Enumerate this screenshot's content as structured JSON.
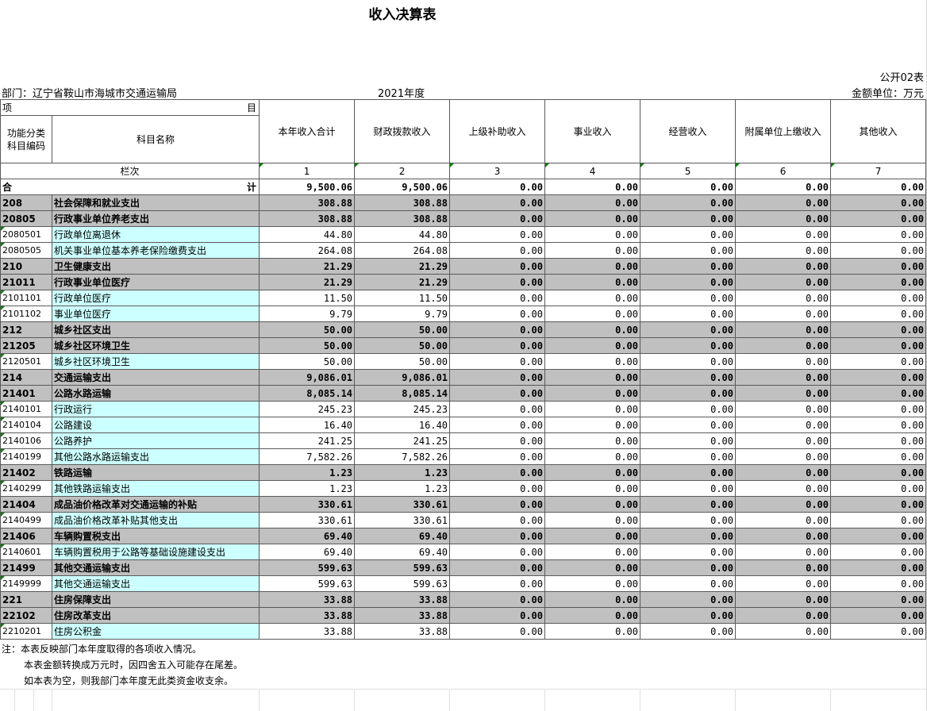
{
  "title": "收入决算表",
  "form_no": "公开02表",
  "department": "部门：辽宁省鞍山市海城市交通运输局",
  "year": "2021年度",
  "unit": "金额单位：万元",
  "header": {
    "xiang": "项",
    "mu": "目",
    "func_code": "功能分类\n科目编码",
    "subject_name": "科目名称",
    "columns": [
      "本年收入合计",
      "财政拨款收入",
      "上级补助收入",
      "事业收入",
      "经营收入",
      "附属单位上缴收入",
      "其他收入"
    ],
    "lanci": "栏次",
    "col_nums": [
      "1",
      "2",
      "3",
      "4",
      "5",
      "6",
      "7"
    ],
    "total_left": "合",
    "total_right": "计",
    "total_values": [
      "9,500.06",
      "9,500.06",
      "0.00",
      "0.00",
      "0.00",
      "0.00",
      "0.00"
    ]
  },
  "rows": [
    {
      "code": "208",
      "name": "社会保障和就业支出",
      "level": "gray",
      "v": [
        "308.88",
        "308.88",
        "0.00",
        "0.00",
        "0.00",
        "0.00",
        "0.00"
      ]
    },
    {
      "code": "20805",
      "name": "行政事业单位养老支出",
      "level": "gray",
      "v": [
        "308.88",
        "308.88",
        "0.00",
        "0.00",
        "0.00",
        "0.00",
        "0.00"
      ]
    },
    {
      "code": "2080501",
      "name": "行政单位离退休",
      "level": "detail",
      "v": [
        "44.80",
        "44.80",
        "0.00",
        "0.00",
        "0.00",
        "0.00",
        "0.00"
      ]
    },
    {
      "code": "2080505",
      "name": "机关事业单位基本养老保险缴费支出",
      "level": "detail",
      "v": [
        "264.08",
        "264.08",
        "0.00",
        "0.00",
        "0.00",
        "0.00",
        "0.00"
      ]
    },
    {
      "code": "210",
      "name": "卫生健康支出",
      "level": "gray",
      "v": [
        "21.29",
        "21.29",
        "0.00",
        "0.00",
        "0.00",
        "0.00",
        "0.00"
      ]
    },
    {
      "code": "21011",
      "name": "行政事业单位医疗",
      "level": "gray",
      "v": [
        "21.29",
        "21.29",
        "0.00",
        "0.00",
        "0.00",
        "0.00",
        "0.00"
      ]
    },
    {
      "code": "2101101",
      "name": "行政单位医疗",
      "level": "detail",
      "v": [
        "11.50",
        "11.50",
        "0.00",
        "0.00",
        "0.00",
        "0.00",
        "0.00"
      ]
    },
    {
      "code": "2101102",
      "name": "事业单位医疗",
      "level": "detail",
      "v": [
        "9.79",
        "9.79",
        "0.00",
        "0.00",
        "0.00",
        "0.00",
        "0.00"
      ]
    },
    {
      "code": "212",
      "name": "城乡社区支出",
      "level": "gray",
      "v": [
        "50.00",
        "50.00",
        "0.00",
        "0.00",
        "0.00",
        "0.00",
        "0.00"
      ]
    },
    {
      "code": "21205",
      "name": "城乡社区环境卫生",
      "level": "gray",
      "v": [
        "50.00",
        "50.00",
        "0.00",
        "0.00",
        "0.00",
        "0.00",
        "0.00"
      ]
    },
    {
      "code": "2120501",
      "name": "城乡社区环境卫生",
      "level": "detail",
      "v": [
        "50.00",
        "50.00",
        "0.00",
        "0.00",
        "0.00",
        "0.00",
        "0.00"
      ]
    },
    {
      "code": "214",
      "name": "交通运输支出",
      "level": "gray",
      "v": [
        "9,086.01",
        "9,086.01",
        "0.00",
        "0.00",
        "0.00",
        "0.00",
        "0.00"
      ]
    },
    {
      "code": "21401",
      "name": "公路水路运输",
      "level": "gray",
      "v": [
        "8,085.14",
        "8,085.14",
        "0.00",
        "0.00",
        "0.00",
        "0.00",
        "0.00"
      ]
    },
    {
      "code": "2140101",
      "name": "行政运行",
      "level": "detail",
      "v": [
        "245.23",
        "245.23",
        "0.00",
        "0.00",
        "0.00",
        "0.00",
        "0.00"
      ]
    },
    {
      "code": "2140104",
      "name": "公路建设",
      "level": "detail",
      "v": [
        "16.40",
        "16.40",
        "0.00",
        "0.00",
        "0.00",
        "0.00",
        "0.00"
      ]
    },
    {
      "code": "2140106",
      "name": "公路养护",
      "level": "detail",
      "v": [
        "241.25",
        "241.25",
        "0.00",
        "0.00",
        "0.00",
        "0.00",
        "0.00"
      ]
    },
    {
      "code": "2140199",
      "name": "其他公路水路运输支出",
      "level": "detail",
      "v": [
        "7,582.26",
        "7,582.26",
        "0.00",
        "0.00",
        "0.00",
        "0.00",
        "0.00"
      ]
    },
    {
      "code": "21402",
      "name": "铁路运输",
      "level": "gray",
      "v": [
        "1.23",
        "1.23",
        "0.00",
        "0.00",
        "0.00",
        "0.00",
        "0.00"
      ]
    },
    {
      "code": "2140299",
      "name": "其他铁路运输支出",
      "level": "detail",
      "v": [
        "1.23",
        "1.23",
        "0.00",
        "0.00",
        "0.00",
        "0.00",
        "0.00"
      ]
    },
    {
      "code": "21404",
      "name": "成品油价格改革对交通运输的补贴",
      "level": "gray",
      "v": [
        "330.61",
        "330.61",
        "0.00",
        "0.00",
        "0.00",
        "0.00",
        "0.00"
      ]
    },
    {
      "code": "2140499",
      "name": "成品油价格改革补贴其他支出",
      "level": "detail",
      "v": [
        "330.61",
        "330.61",
        "0.00",
        "0.00",
        "0.00",
        "0.00",
        "0.00"
      ]
    },
    {
      "code": "21406",
      "name": "车辆购置税支出",
      "level": "gray",
      "v": [
        "69.40",
        "69.40",
        "0.00",
        "0.00",
        "0.00",
        "0.00",
        "0.00"
      ]
    },
    {
      "code": "2140601",
      "name": "车辆购置税用于公路等基础设施建设支出",
      "level": "detail",
      "v": [
        "69.40",
        "69.40",
        "0.00",
        "0.00",
        "0.00",
        "0.00",
        "0.00"
      ]
    },
    {
      "code": "21499",
      "name": "其他交通运输支出",
      "level": "gray",
      "v": [
        "599.63",
        "599.63",
        "0.00",
        "0.00",
        "0.00",
        "0.00",
        "0.00"
      ]
    },
    {
      "code": "2149999",
      "name": "其他交通运输支出",
      "level": "detail",
      "v": [
        "599.63",
        "599.63",
        "0.00",
        "0.00",
        "0.00",
        "0.00",
        "0.00"
      ]
    },
    {
      "code": "221",
      "name": "住房保障支出",
      "level": "gray",
      "v": [
        "33.88",
        "33.88",
        "0.00",
        "0.00",
        "0.00",
        "0.00",
        "0.00"
      ]
    },
    {
      "code": "22102",
      "name": "住房改革支出",
      "level": "gray",
      "v": [
        "33.88",
        "33.88",
        "0.00",
        "0.00",
        "0.00",
        "0.00",
        "0.00"
      ]
    },
    {
      "code": "2210201",
      "name": "住房公积金",
      "level": "detail",
      "v": [
        "33.88",
        "33.88",
        "0.00",
        "0.00",
        "0.00",
        "0.00",
        "0.00"
      ]
    }
  ],
  "notes": [
    "注：本表反映部门本年度取得的各项收入情况。",
    "本表金额转换成万元时，因四舍五入可能存在尾差。",
    "如本表为空，则我部门本年度无此类资金收支余。"
  ]
}
